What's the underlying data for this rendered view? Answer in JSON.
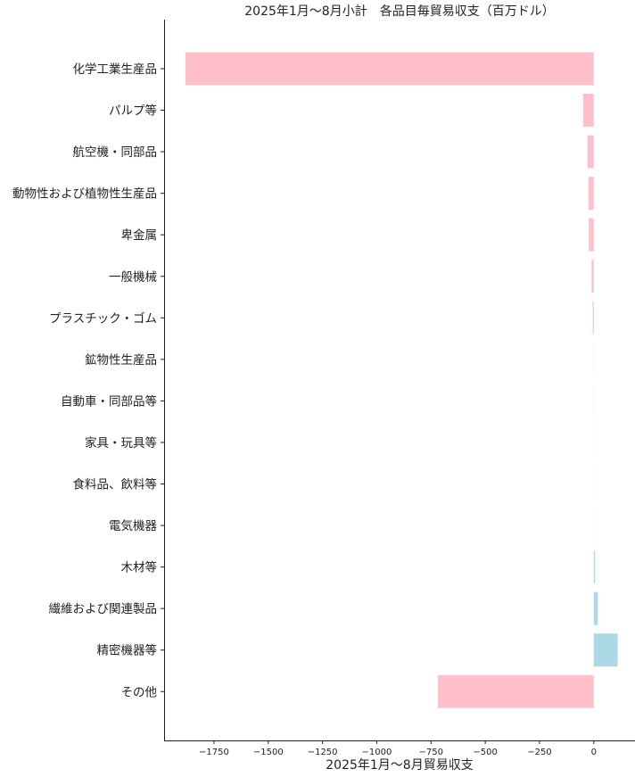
{
  "chart_data": {
    "type": "bar",
    "orientation": "horizontal",
    "title": "2025年1月～8月小計　各品目毎貿易収支（百万ドル）",
    "xlabel": "2025年1月～8月貿易収支",
    "ylabel": "",
    "xlim": [
      -1980,
      190
    ],
    "xticks": [
      -1750,
      -1500,
      -1250,
      -1000,
      -750,
      -500,
      -250,
      0
    ],
    "xtick_labels": [
      "−1750",
      "−1500",
      "−1250",
      "−1000",
      "−750",
      "−500",
      "−250",
      "0"
    ],
    "grid": false,
    "colors": {
      "negative": "#ffc0cb",
      "positive": "#add8e6"
    },
    "categories": [
      "化学工業生産品",
      "パルプ等",
      "航空機・同部品",
      "動物性および植物性生産品",
      "卑金属",
      "一般機械",
      "プラスチック・ゴム",
      "鉱物性生産品",
      "自動車・同部品等",
      "家具・玩具等",
      "食料品、飲料等",
      "電気機器",
      "木材等",
      "繊維および関連製品",
      "精密機器等",
      "その他"
    ],
    "values": [
      -1882,
      -49,
      -29,
      -25,
      -23,
      -10,
      -5,
      -2,
      -2,
      -0.5,
      -0.3,
      0.3,
      6,
      19,
      110,
      -719
    ]
  }
}
